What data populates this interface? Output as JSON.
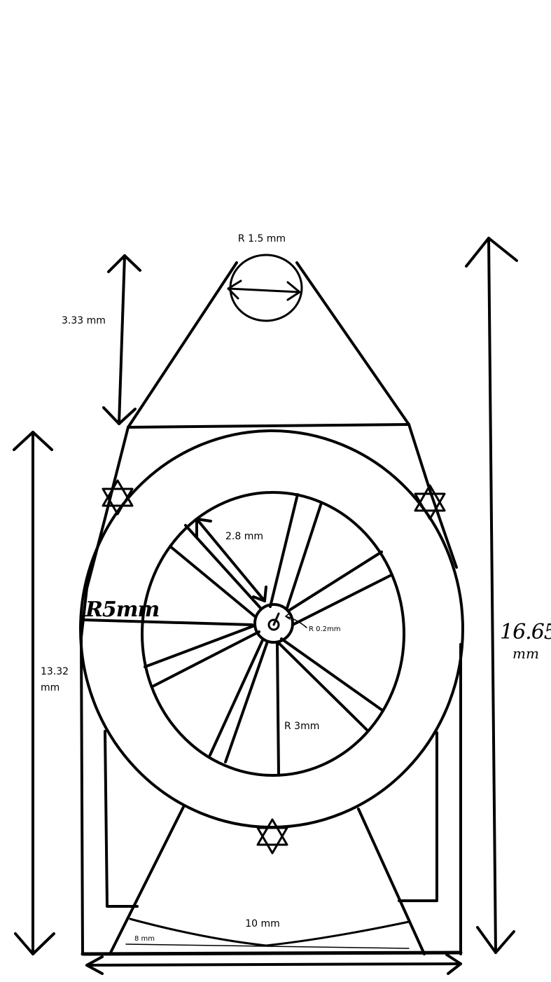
{
  "diagram": {
    "labels": {
      "top_radius": "R 1.5 mm",
      "tip_height": "3.33 mm",
      "spoke_length": "2.8 mm",
      "outer_radius": "R5mm",
      "hub_radius": "R 0.2mm",
      "inner_radius": "R 3mm",
      "left_height_value": "13.32",
      "left_height_unit": "mm",
      "right_height_value": "16.65",
      "right_height_unit": "mm",
      "base_width": "10 mm",
      "base_small": "8 mm"
    },
    "colors": {
      "ink": "#000000",
      "paper": "#ffffff"
    }
  }
}
